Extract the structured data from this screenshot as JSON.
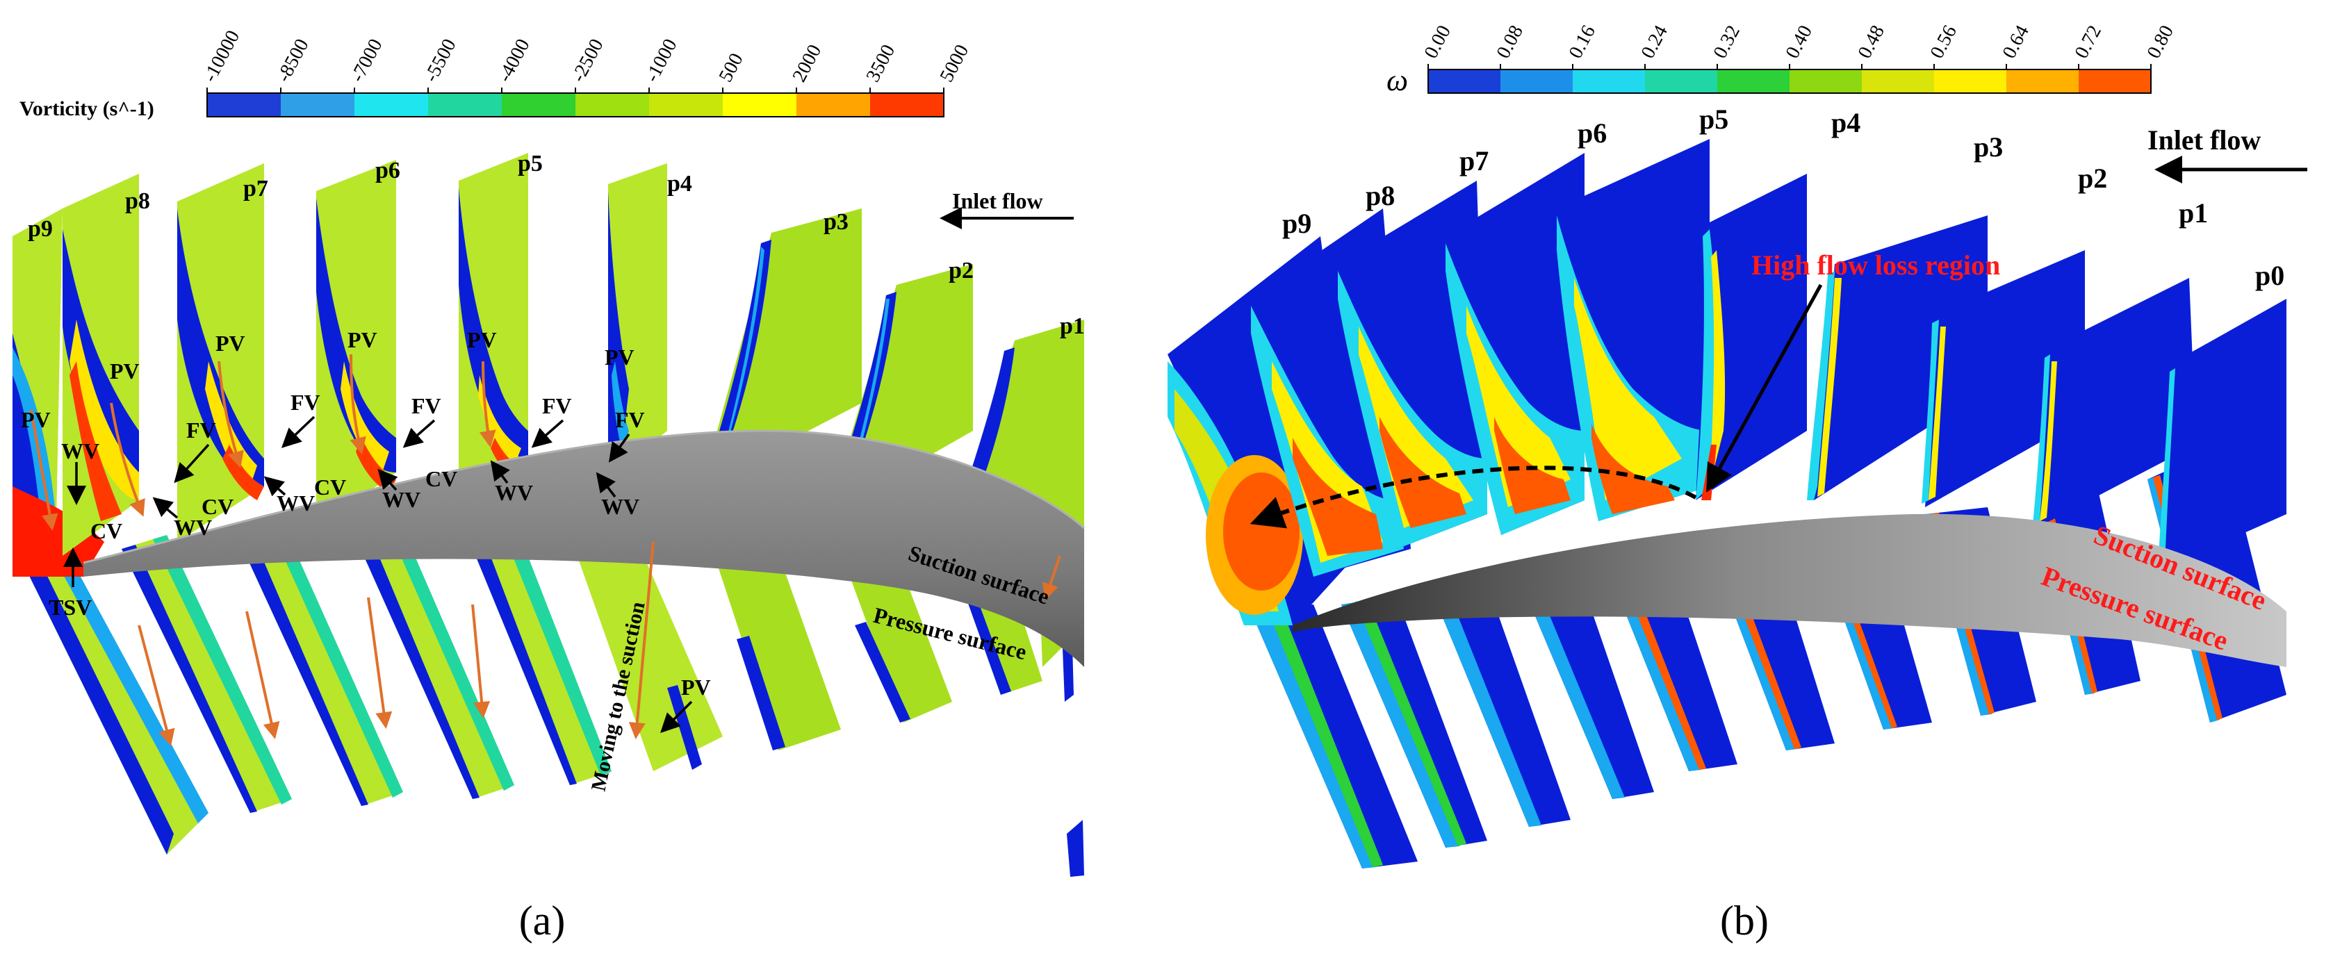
{
  "panel_a": {
    "caption": "(a)",
    "colorbar": {
      "title": "Vorticity (s^-1)",
      "ticks": [
        "-10000",
        "-8500",
        "-7000",
        "-5500",
        "-4000",
        "-2500",
        "-1000",
        "500",
        "2000",
        "3500",
        "5000"
      ],
      "colors": [
        "#1f3ed6",
        "#2fa0e8",
        "#1fe6ee",
        "#22d6a0",
        "#2fd02f",
        "#9ee010",
        "#c8e60a",
        "#ffff00",
        "#ffa400",
        "#ff3a00"
      ]
    },
    "planes": [
      "p9",
      "p8",
      "p7",
      "p6",
      "p5",
      "p4",
      "p3",
      "p2",
      "p1"
    ],
    "inlet_flow": "Inlet flow",
    "suction_surface": "Suction surface",
    "pressure_surface": "Pressure surface",
    "moving_note": "Moving to the suction",
    "vortices": {
      "pv": "PV",
      "fv": "FV",
      "wv": "WV",
      "cv": "CV",
      "tsv": "TSV"
    }
  },
  "panel_b": {
    "caption": "(b)",
    "colorbar": {
      "symbol": "ω",
      "ticks": [
        "0.00",
        "0.08",
        "0.16",
        "0.24",
        "0.32",
        "0.40",
        "0.48",
        "0.56",
        "0.64",
        "0.72",
        "0.80"
      ],
      "colors": [
        "#1a3fd8",
        "#1e8fe8",
        "#22d8ee",
        "#20d6a4",
        "#2cd038",
        "#8ed812",
        "#d8e40a",
        "#ffee00",
        "#ffb000",
        "#ff5a00"
      ]
    },
    "planes": [
      "p9",
      "p8",
      "p7",
      "p6",
      "p5",
      "p4",
      "p3",
      "p2",
      "p1",
      "p0"
    ],
    "inlet_flow": "Inlet flow",
    "high_loss": "High flow loss region",
    "suction_surface": "Suction surface",
    "pressure_surface": "Pressure surface"
  },
  "colors": {
    "green_field": "#b8e62a",
    "blade_grey": "#8a8a8a",
    "deep_blue": "#0a1ed8",
    "loss_red": "#ff2a00",
    "arrow_orange": "#e0702a",
    "annotation_red": "#ff1a1a"
  }
}
